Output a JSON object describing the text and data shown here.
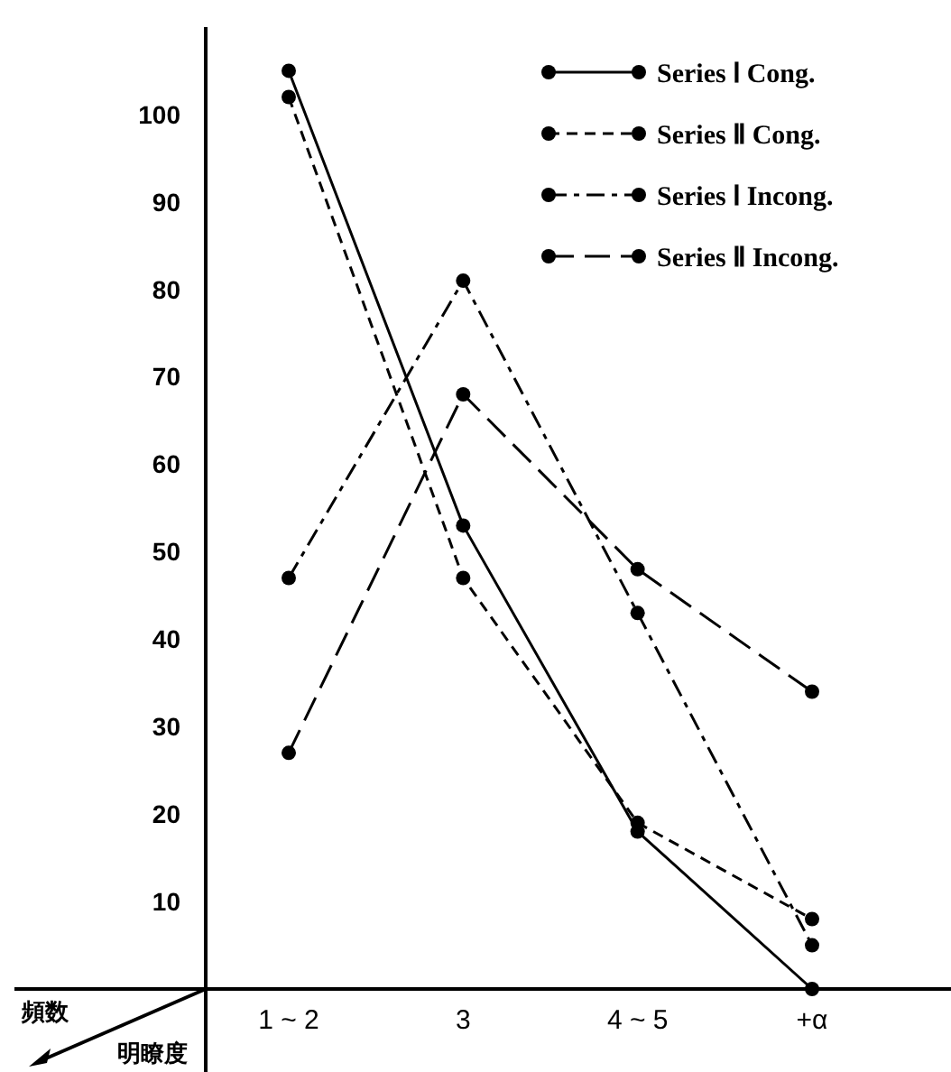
{
  "chart_data": {
    "type": "line",
    "xlabel": "明瞭度",
    "ylabel": "頻数",
    "categories": [
      "1 ~ 2",
      "3",
      "4 ~ 5",
      "+α"
    ],
    "ylim": [
      0,
      110
    ],
    "yticks": [
      10,
      20,
      30,
      40,
      50,
      60,
      70,
      80,
      90,
      100
    ],
    "grid": false,
    "legend": "top right",
    "marker": "circle",
    "series": [
      {
        "name": "Series Ⅰ Cong.",
        "color": "#000000",
        "line_style": "solid",
        "values": [
          105,
          53,
          18,
          0
        ]
      },
      {
        "name": "Series Ⅱ Cong.",
        "color": "#000000",
        "line_style": "dashed",
        "values": [
          102,
          47,
          19,
          8
        ]
      },
      {
        "name": "Series Ⅰ Incong.",
        "color": "#000000",
        "line_style": "dashdot",
        "values": [
          47,
          81,
          43,
          5
        ]
      },
      {
        "name": "Series Ⅱ Incong.",
        "color": "#000000",
        "line_style": "longdash",
        "values": [
          27,
          68,
          48,
          34
        ]
      }
    ]
  }
}
